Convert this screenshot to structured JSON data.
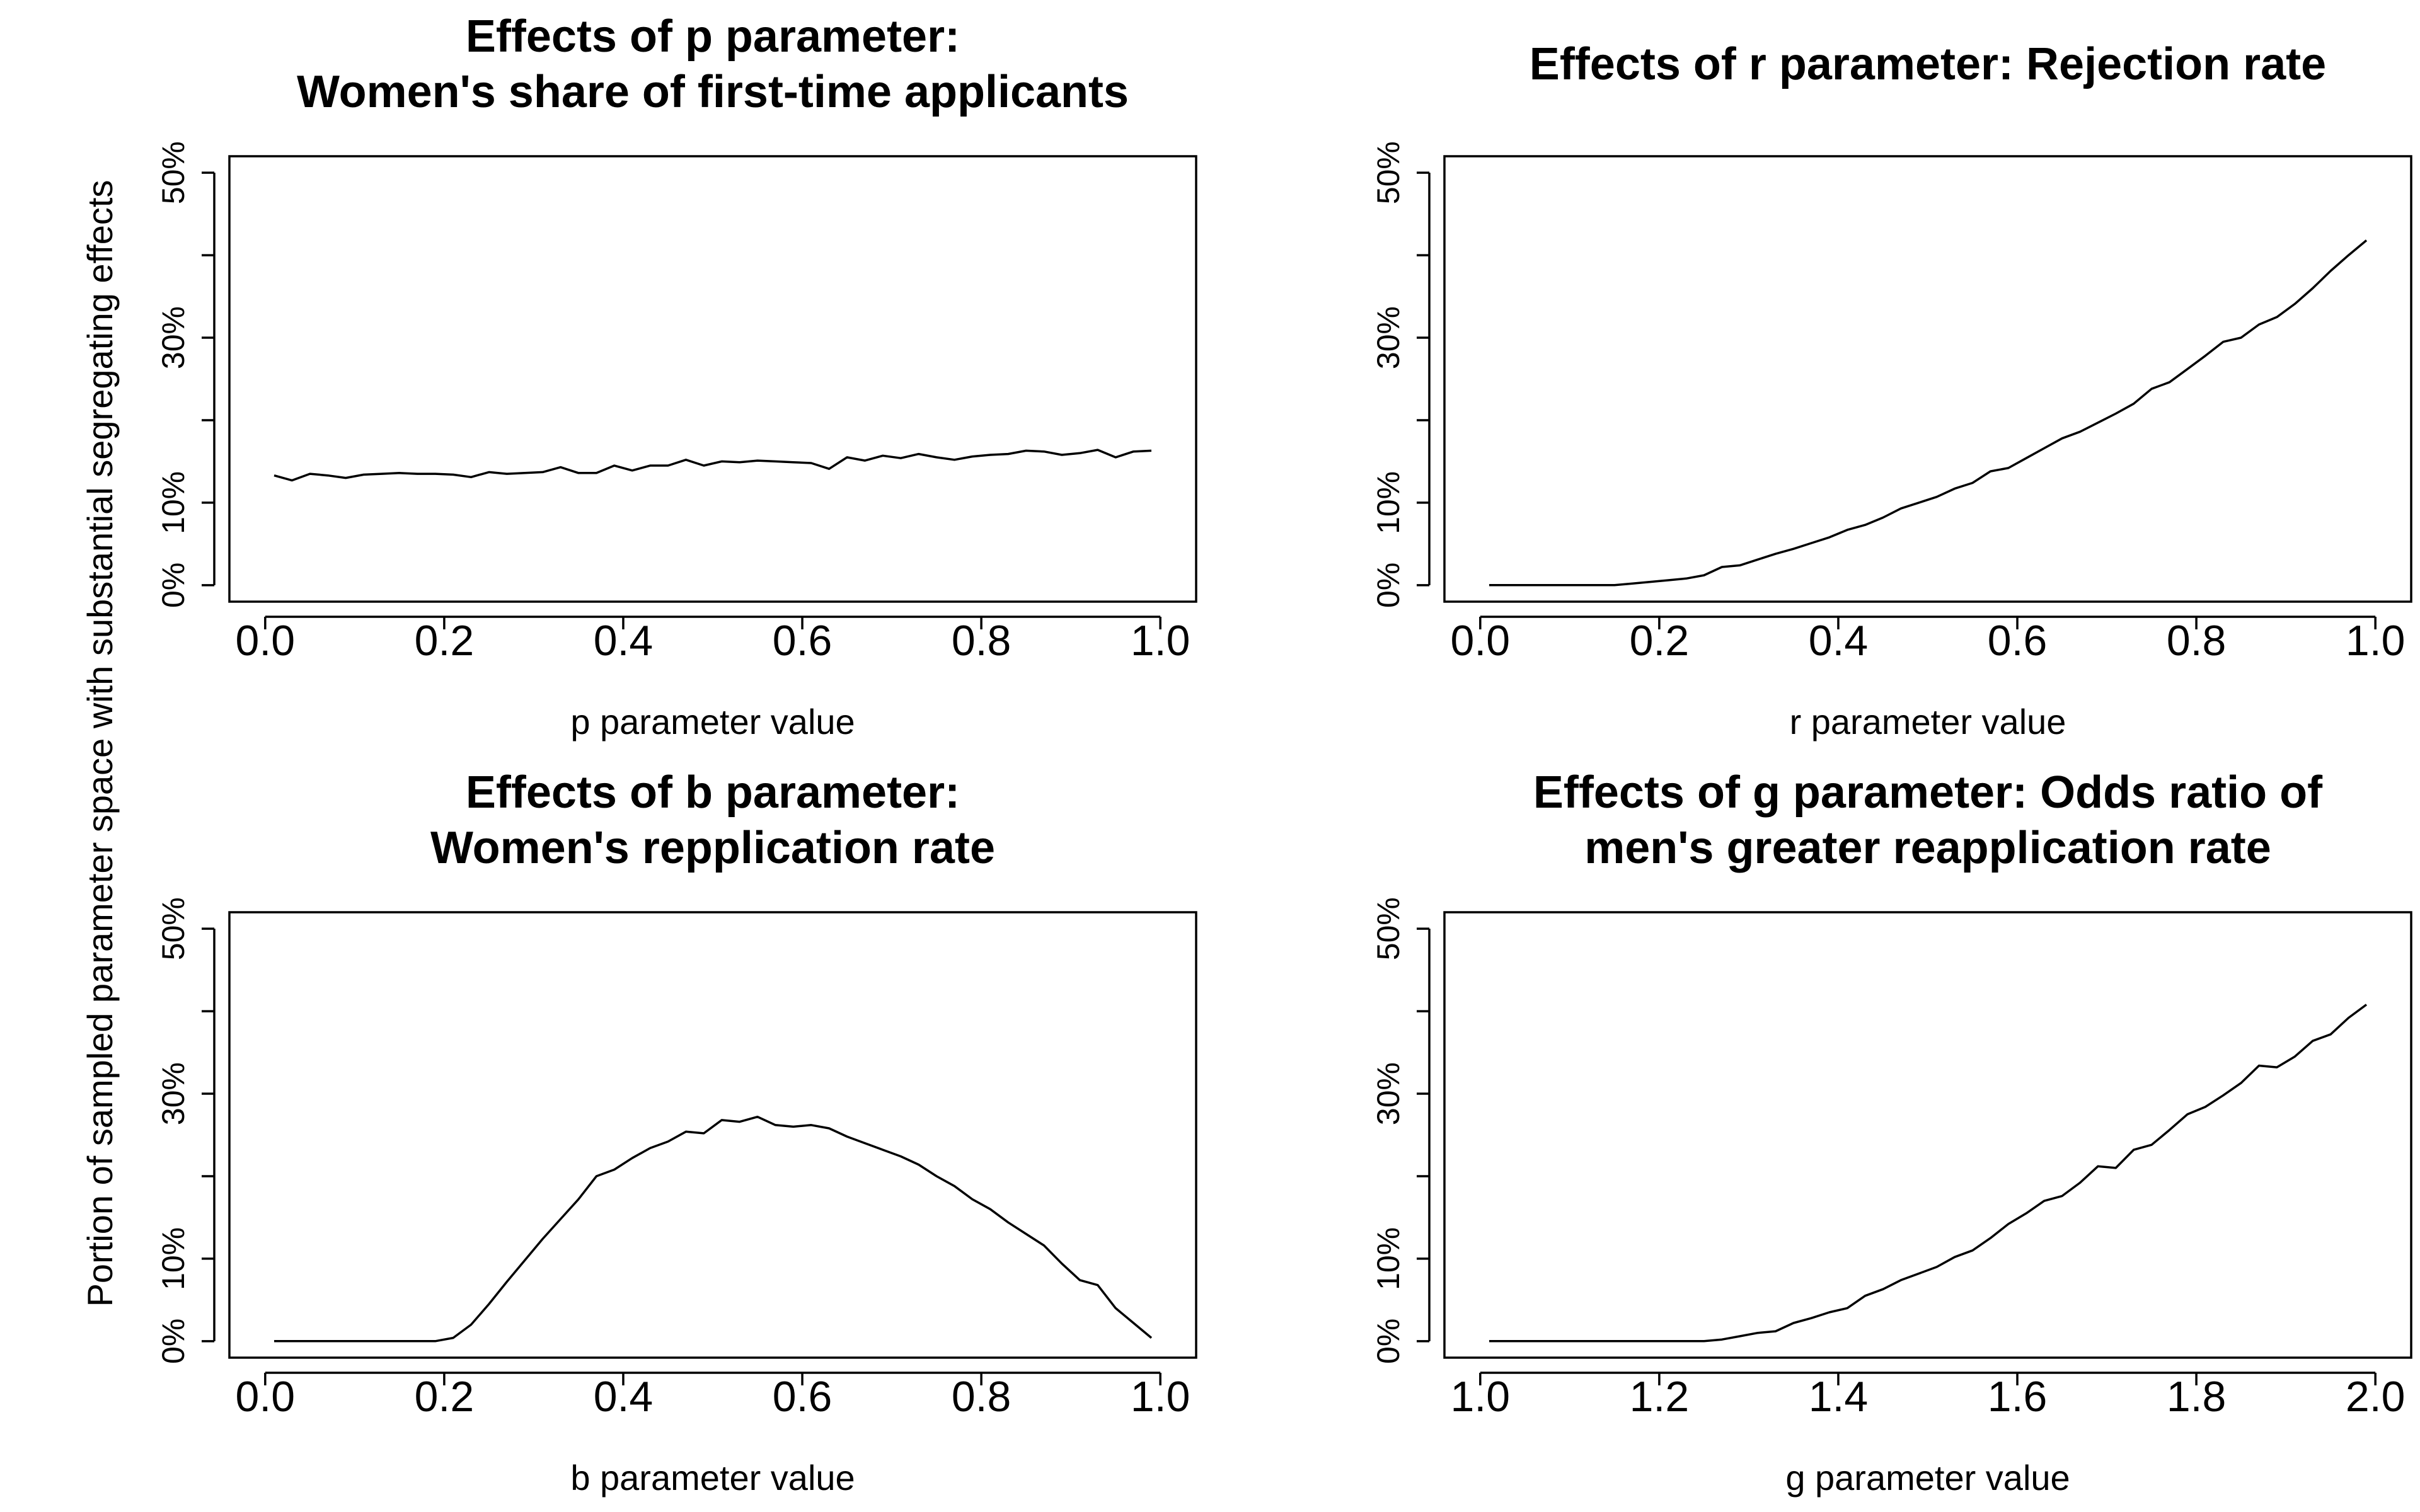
{
  "figure": {
    "shared_ylabel": "Portion of sampled parameter space with substantial segregating effects"
  },
  "chart_data": [
    {
      "type": "line",
      "title": [
        "Effects of p parameter:",
        "Women's share of first-time applicants"
      ],
      "xlabel": "p parameter value",
      "ylabel": "",
      "xlim": [
        0.0,
        1.0
      ],
      "ylim": [
        0,
        0.5
      ],
      "xticks": [
        0.0,
        0.2,
        0.4,
        0.6,
        0.8,
        1.0
      ],
      "xtick_labels": [
        "0.0",
        "0.2",
        "0.4",
        "0.6",
        "0.8",
        "1.0"
      ],
      "yticks": [
        0,
        0.1,
        0.2,
        0.3,
        0.4,
        0.5
      ],
      "ytick_labels": [
        "0%",
        "10%",
        "",
        "30%",
        "",
        "50%"
      ],
      "grid": false,
      "x": [
        0.01,
        0.03,
        0.05,
        0.07,
        0.09,
        0.11,
        0.13,
        0.15,
        0.17,
        0.19,
        0.21,
        0.23,
        0.25,
        0.27,
        0.29,
        0.31,
        0.33,
        0.35,
        0.37,
        0.39,
        0.41,
        0.43,
        0.45,
        0.47,
        0.49,
        0.51,
        0.53,
        0.55,
        0.57,
        0.59,
        0.61,
        0.63,
        0.65,
        0.67,
        0.69,
        0.71,
        0.73,
        0.75,
        0.77,
        0.79,
        0.81,
        0.83,
        0.85,
        0.87,
        0.89,
        0.91,
        0.93,
        0.95,
        0.97,
        0.99
      ],
      "y": [
        0.133,
        0.127,
        0.135,
        0.133,
        0.13,
        0.134,
        0.135,
        0.136,
        0.135,
        0.135,
        0.134,
        0.131,
        0.137,
        0.135,
        0.136,
        0.137,
        0.143,
        0.136,
        0.136,
        0.145,
        0.139,
        0.145,
        0.145,
        0.152,
        0.145,
        0.15,
        0.149,
        0.151,
        0.15,
        0.149,
        0.148,
        0.141,
        0.155,
        0.151,
        0.157,
        0.154,
        0.159,
        0.155,
        0.152,
        0.156,
        0.158,
        0.159,
        0.163,
        0.162,
        0.158,
        0.16,
        0.164,
        0.155,
        0.162,
        0.163
      ]
    },
    {
      "type": "line",
      "title": [
        "Effects of r parameter: Rejection rate"
      ],
      "xlabel": "r parameter value",
      "ylabel": "",
      "xlim": [
        0.0,
        1.0
      ],
      "ylim": [
        0,
        0.5
      ],
      "xticks": [
        0.0,
        0.2,
        0.4,
        0.6,
        0.8,
        1.0
      ],
      "xtick_labels": [
        "0.0",
        "0.2",
        "0.4",
        "0.6",
        "0.8",
        "1.0"
      ],
      "yticks": [
        0,
        0.1,
        0.2,
        0.3,
        0.4,
        0.5
      ],
      "ytick_labels": [
        "0%",
        "10%",
        "",
        "30%",
        "",
        "50%"
      ],
      "grid": false,
      "x": [
        0.01,
        0.03,
        0.05,
        0.07,
        0.09,
        0.11,
        0.13,
        0.15,
        0.17,
        0.19,
        0.21,
        0.23,
        0.25,
        0.27,
        0.29,
        0.31,
        0.33,
        0.35,
        0.37,
        0.39,
        0.41,
        0.43,
        0.45,
        0.47,
        0.49,
        0.51,
        0.53,
        0.55,
        0.57,
        0.59,
        0.61,
        0.63,
        0.65,
        0.67,
        0.69,
        0.71,
        0.73,
        0.75,
        0.77,
        0.79,
        0.81,
        0.83,
        0.85,
        0.87,
        0.89,
        0.91,
        0.93,
        0.95,
        0.97,
        0.99
      ],
      "y": [
        0.0,
        0.0,
        0.0,
        0.0,
        0.0,
        0.0,
        0.0,
        0.0,
        0.002,
        0.004,
        0.006,
        0.008,
        0.012,
        0.022,
        0.024,
        0.031,
        0.038,
        0.044,
        0.051,
        0.058,
        0.067,
        0.073,
        0.082,
        0.093,
        0.1,
        0.107,
        0.117,
        0.124,
        0.138,
        0.142,
        0.154,
        0.166,
        0.178,
        0.186,
        0.197,
        0.208,
        0.22,
        0.238,
        0.246,
        0.262,
        0.278,
        0.295,
        0.3,
        0.316,
        0.325,
        0.341,
        0.36,
        0.381,
        0.4,
        0.418
      ]
    },
    {
      "type": "line",
      "title": [
        "Effects of b parameter:",
        "Women's repplication rate"
      ],
      "xlabel": "b parameter value",
      "ylabel": "",
      "xlim": [
        0.0,
        1.0
      ],
      "ylim": [
        0,
        0.5
      ],
      "xticks": [
        0.0,
        0.2,
        0.4,
        0.6,
        0.8,
        1.0
      ],
      "xtick_labels": [
        "0.0",
        "0.2",
        "0.4",
        "0.6",
        "0.8",
        "1.0"
      ],
      "yticks": [
        0,
        0.1,
        0.2,
        0.3,
        0.4,
        0.5
      ],
      "ytick_labels": [
        "0%",
        "10%",
        "",
        "30%",
        "",
        "50%"
      ],
      "grid": false,
      "x": [
        0.01,
        0.03,
        0.05,
        0.07,
        0.09,
        0.11,
        0.13,
        0.15,
        0.17,
        0.19,
        0.21,
        0.23,
        0.25,
        0.27,
        0.29,
        0.31,
        0.33,
        0.35,
        0.37,
        0.39,
        0.41,
        0.43,
        0.45,
        0.47,
        0.49,
        0.51,
        0.53,
        0.55,
        0.57,
        0.59,
        0.61,
        0.63,
        0.65,
        0.67,
        0.69,
        0.71,
        0.73,
        0.75,
        0.77,
        0.79,
        0.81,
        0.83,
        0.85,
        0.87,
        0.89,
        0.91,
        0.93,
        0.95,
        0.97,
        0.99
      ],
      "y": [
        0.0,
        0.0,
        0.0,
        0.0,
        0.0,
        0.0,
        0.0,
        0.0,
        0.0,
        0.0,
        0.004,
        0.02,
        0.045,
        0.072,
        0.098,
        0.124,
        0.148,
        0.172,
        0.2,
        0.208,
        0.222,
        0.234,
        0.242,
        0.254,
        0.252,
        0.268,
        0.266,
        0.272,
        0.262,
        0.26,
        0.262,
        0.258,
        0.248,
        0.24,
        0.232,
        0.224,
        0.214,
        0.2,
        0.188,
        0.172,
        0.16,
        0.144,
        0.13,
        0.116,
        0.094,
        0.074,
        0.068,
        0.04,
        0.022,
        0.004
      ]
    },
    {
      "type": "line",
      "title": [
        "Effects of g parameter: Odds ratio of",
        "men's greater reapplication rate"
      ],
      "xlabel": "g parameter value",
      "ylabel": "",
      "xlim": [
        1.0,
        2.0
      ],
      "ylim": [
        0,
        0.5
      ],
      "xticks": [
        1.0,
        1.2,
        1.4,
        1.6,
        1.8,
        2.0
      ],
      "xtick_labels": [
        "1.0",
        "1.2",
        "1.4",
        "1.6",
        "1.8",
        "2.0"
      ],
      "yticks": [
        0,
        0.1,
        0.2,
        0.3,
        0.4,
        0.5
      ],
      "ytick_labels": [
        "0%",
        "10%",
        "",
        "30%",
        "",
        "50%"
      ],
      "grid": false,
      "x": [
        1.01,
        1.03,
        1.05,
        1.07,
        1.09,
        1.11,
        1.13,
        1.15,
        1.17,
        1.19,
        1.21,
        1.23,
        1.25,
        1.27,
        1.29,
        1.31,
        1.33,
        1.35,
        1.37,
        1.39,
        1.41,
        1.43,
        1.45,
        1.47,
        1.49,
        1.51,
        1.53,
        1.55,
        1.57,
        1.59,
        1.61,
        1.63,
        1.65,
        1.67,
        1.69,
        1.71,
        1.73,
        1.75,
        1.77,
        1.79,
        1.81,
        1.83,
        1.85,
        1.87,
        1.89,
        1.91,
        1.93,
        1.95,
        1.97,
        1.99
      ],
      "y": [
        0.0,
        0.0,
        0.0,
        0.0,
        0.0,
        0.0,
        0.0,
        0.0,
        0.0,
        0.0,
        0.0,
        0.0,
        0.0,
        0.002,
        0.006,
        0.01,
        0.012,
        0.022,
        0.028,
        0.035,
        0.04,
        0.055,
        0.063,
        0.074,
        0.082,
        0.09,
        0.102,
        0.11,
        0.125,
        0.142,
        0.155,
        0.17,
        0.176,
        0.192,
        0.212,
        0.21,
        0.232,
        0.238,
        0.256,
        0.275,
        0.284,
        0.298,
        0.313,
        0.334,
        0.332,
        0.345,
        0.364,
        0.372,
        0.392,
        0.408
      ]
    }
  ]
}
